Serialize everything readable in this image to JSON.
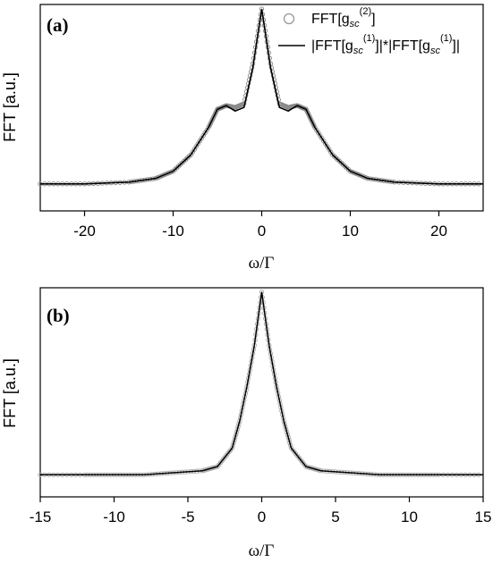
{
  "chart_data": [
    {
      "panel_label": "(a)",
      "type": "scatter+line",
      "xlabel": "ω/Γ",
      "ylabel": "FFT [a.u.]",
      "xlim": [
        -25,
        25
      ],
      "xticks": [
        -20,
        -10,
        0,
        10,
        20
      ],
      "legend": {
        "placement": "top-right",
        "entries": [
          {
            "marker": "circle",
            "text": "FFT[g",
            "sub": "sc",
            "sup": "(2)",
            "suffix": "]"
          },
          {
            "marker": "line",
            "text": "|FFT[g",
            "sub1": "sc",
            "sup1": "(1)",
            "mid": "]|*|FFT[g",
            "sub2": "sc",
            "sup2": "(1)",
            "suffix": "]|"
          }
        ]
      },
      "series": [
        {
          "name": "FFT[g_sc^(2)]",
          "style": "open-circles",
          "color": "#888888",
          "description_points": {
            "x": [
              -25,
              -20,
              -15,
              -12,
              -10,
              -8,
              -6,
              -5,
              -4,
              -3,
              -2,
              -1,
              0,
              1,
              2,
              3,
              4,
              5,
              6,
              8,
              10,
              12,
              15,
              20,
              25
            ],
            "y": [
              0.04,
              0.04,
              0.05,
              0.07,
              0.11,
              0.2,
              0.35,
              0.45,
              0.47,
              0.46,
              0.48,
              0.7,
              1.0,
              0.7,
              0.48,
              0.46,
              0.47,
              0.45,
              0.35,
              0.2,
              0.11,
              0.07,
              0.05,
              0.04,
              0.04
            ]
          }
        },
        {
          "name": "|FFT[g_sc^(1)]|*|FFT[g_sc^(1)]|",
          "style": "solid-line",
          "color": "#000000",
          "x": [
            -25,
            -20,
            -15,
            -12,
            -10,
            -8,
            -6,
            -5,
            -4,
            -3,
            -2,
            -1,
            0,
            1,
            2,
            3,
            4,
            5,
            6,
            8,
            10,
            12,
            15,
            20,
            25
          ],
          "y": [
            0.04,
            0.04,
            0.05,
            0.07,
            0.11,
            0.2,
            0.35,
            0.45,
            0.47,
            0.44,
            0.46,
            0.68,
            1.0,
            0.68,
            0.46,
            0.44,
            0.47,
            0.45,
            0.35,
            0.2,
            0.11,
            0.07,
            0.05,
            0.04,
            0.04
          ]
        }
      ]
    },
    {
      "panel_label": "(b)",
      "type": "scatter+line",
      "xlabel": "ω/Γ",
      "ylabel": "FFT [a.u.]",
      "xlim": [
        -15,
        15
      ],
      "xticks": [
        -15,
        -10,
        -5,
        0,
        5,
        10,
        15
      ],
      "series": [
        {
          "name": "FFT[g_sc^(2)]",
          "style": "open-circles",
          "color": "#aaaaaa",
          "x": [
            -15,
            -12,
            -10,
            -8,
            -6,
            -4,
            -3,
            -2,
            -1.5,
            -1,
            -0.5,
            0,
            0.5,
            1,
            1.5,
            2,
            3,
            4,
            6,
            8,
            10,
            12,
            15
          ],
          "y": [
            0.09,
            0.09,
            0.09,
            0.09,
            0.1,
            0.11,
            0.13,
            0.22,
            0.35,
            0.52,
            0.72,
            0.98,
            0.72,
            0.52,
            0.35,
            0.22,
            0.13,
            0.11,
            0.1,
            0.09,
            0.09,
            0.09,
            0.09
          ]
        },
        {
          "name": "|FFT[g_sc^(1)]|*|FFT[g_sc^(1)]|",
          "style": "solid-line",
          "color": "#000000",
          "x": [
            -15,
            -12,
            -10,
            -8,
            -6,
            -4,
            -3,
            -2,
            -1.5,
            -1,
            -0.5,
            0,
            0.5,
            1,
            1.5,
            2,
            3,
            4,
            6,
            8,
            10,
            12,
            15
          ],
          "y": [
            0.09,
            0.09,
            0.09,
            0.09,
            0.1,
            0.11,
            0.13,
            0.22,
            0.35,
            0.52,
            0.72,
            0.98,
            0.72,
            0.52,
            0.35,
            0.22,
            0.13,
            0.11,
            0.1,
            0.09,
            0.09,
            0.09,
            0.09
          ]
        }
      ]
    }
  ]
}
